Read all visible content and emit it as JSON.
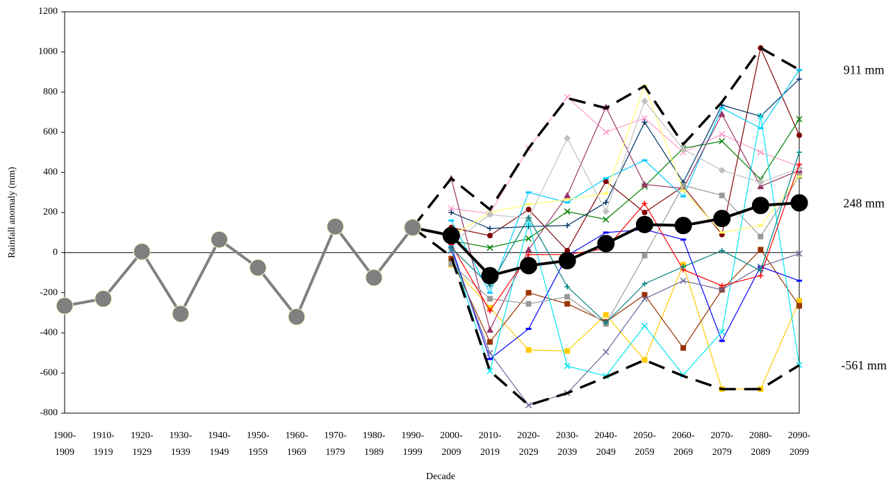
{
  "chart_data": {
    "type": "line",
    "x_label": "Decade",
    "y_label": "Rainfall anomaly (mm)",
    "categories": [
      "1900-\n1909",
      "1910-\n1919",
      "1920-\n1929",
      "1930-\n1939",
      "1940-\n1949",
      "1950-\n1959",
      "1960-\n1969",
      "1970-\n1979",
      "1980-\n1989",
      "1990-\n1999",
      "2000-\n2009",
      "2010-\n2019",
      "2020-\n2029",
      "2030-\n2039",
      "2040-\n2049",
      "2050-\n2059",
      "2060-\n2069",
      "2070-\n2079",
      "2080-\n2089",
      "2090-\n2099"
    ],
    "ylim": [
      -800,
      1200
    ],
    "yticks": [
      -800,
      -600,
      -400,
      -200,
      0,
      200,
      400,
      600,
      800,
      1000,
      1200
    ],
    "series": [
      {
        "color": "#ff99cc",
        "marker": "x",
        "values": [
          null,
          null,
          null,
          null,
          null,
          null,
          null,
          null,
          null,
          null,
          220,
          195,
          520,
          775,
          600,
          670,
          500,
          590,
          500,
          430
        ]
      },
      {
        "color": "#800000",
        "marker": "circle",
        "values": [
          null,
          null,
          null,
          null,
          null,
          null,
          null,
          null,
          null,
          null,
          125,
          85,
          215,
          10,
          355,
          200,
          330,
          90,
          1020,
          585
        ]
      },
      {
        "color": "#008000",
        "marker": "x",
        "values": [
          null,
          null,
          null,
          null,
          null,
          null,
          null,
          null,
          null,
          null,
          60,
          25,
          70,
          205,
          165,
          330,
          520,
          555,
          365,
          665
        ]
      },
      {
        "color": "#003366",
        "marker": "plus",
        "values": [
          null,
          null,
          null,
          null,
          null,
          null,
          null,
          null,
          null,
          null,
          200,
          120,
          130,
          135,
          250,
          650,
          350,
          735,
          680,
          865
        ]
      },
      {
        "color": "#00ccff",
        "marker": "bar",
        "values": [
          null,
          null,
          null,
          null,
          null,
          null,
          null,
          null,
          null,
          null,
          160,
          -200,
          300,
          250,
          370,
          460,
          280,
          720,
          620,
          910
        ]
      },
      {
        "color": "#ffcc00",
        "marker": "square",
        "values": [
          null,
          null,
          null,
          null,
          null,
          null,
          null,
          null,
          null,
          null,
          -60,
          -275,
          -485,
          -490,
          -310,
          -535,
          -60,
          -680,
          -680,
          -240
        ]
      },
      {
        "color": "#993300",
        "marker": "square",
        "values": [
          null,
          null,
          null,
          null,
          null,
          null,
          null,
          null,
          null,
          null,
          -30,
          -445,
          -200,
          -255,
          -345,
          -210,
          -475,
          -185,
          15,
          -265
        ]
      },
      {
        "color": "#993366",
        "marker": "triangle",
        "values": [
          null,
          null,
          null,
          null,
          null,
          null,
          null,
          null,
          null,
          null,
          370,
          -385,
          15,
          285,
          725,
          340,
          320,
          690,
          330,
          410
        ]
      },
      {
        "color": "#0000ff",
        "marker": "bar",
        "values": [
          null,
          null,
          null,
          null,
          null,
          null,
          null,
          null,
          null,
          null,
          30,
          -530,
          -380,
          -15,
          100,
          115,
          65,
          -440,
          -70,
          -140
        ]
      },
      {
        "color": "#999999",
        "marker": "square",
        "values": [
          null,
          null,
          null,
          null,
          null,
          null,
          null,
          null,
          null,
          null,
          -55,
          -230,
          -255,
          -220,
          -355,
          -15,
          335,
          285,
          80,
          380
        ]
      },
      {
        "color": "#00e5ee",
        "marker": "x",
        "values": [
          null,
          null,
          null,
          null,
          null,
          null,
          null,
          null,
          null,
          null,
          20,
          -590,
          150,
          -565,
          -615,
          -365,
          -610,
          -395,
          680,
          -560
        ]
      },
      {
        "color": "#ffff66",
        "marker": "bar",
        "values": [
          null,
          null,
          null,
          null,
          null,
          null,
          null,
          null,
          null,
          null,
          80,
          200,
          240,
          265,
          295,
          830,
          310,
          100,
          135,
          380
        ]
      },
      {
        "color": "#c0c0c0",
        "marker": "diamond",
        "values": [
          null,
          null,
          null,
          null,
          null,
          null,
          null,
          null,
          null,
          null,
          45,
          190,
          170,
          570,
          205,
          755,
          515,
          410,
          350,
          420
        ]
      },
      {
        "color": "#666699",
        "marker": "x",
        "values": [
          null,
          null,
          null,
          null,
          null,
          null,
          null,
          null,
          null,
          null,
          10,
          -500,
          -760,
          -700,
          -495,
          -230,
          -140,
          -185,
          -70,
          -5
        ]
      },
      {
        "color": "#ff0000",
        "marker": "plus",
        "values": [
          null,
          null,
          null,
          null,
          null,
          null,
          null,
          null,
          null,
          null,
          40,
          -290,
          -10,
          -10,
          20,
          245,
          -85,
          -165,
          -115,
          440
        ]
      },
      {
        "color": "#008080",
        "marker": "plus",
        "values": [
          null,
          null,
          null,
          null,
          null,
          null,
          null,
          null,
          null,
          null,
          25,
          -165,
          175,
          -170,
          -350,
          -155,
          -70,
          10,
          -90,
          500
        ]
      },
      {
        "color": "#000000",
        "style": "dashed",
        "values": [
          null,
          null,
          null,
          null,
          null,
          null,
          null,
          null,
          null,
          125,
          370,
          215,
          520,
          770,
          720,
          830,
          540,
          750,
          1020,
          911
        ]
      },
      {
        "color": "#000000",
        "style": "dashed",
        "values": [
          null,
          null,
          null,
          null,
          null,
          null,
          null,
          null,
          null,
          125,
          -20,
          -590,
          -760,
          -700,
          -620,
          -535,
          -615,
          -680,
          -680,
          -561
        ]
      },
      {
        "color": "#000000",
        "marker": "big",
        "values": [
          null,
          null,
          null,
          null,
          null,
          null,
          null,
          null,
          null,
          125,
          85,
          -115,
          -65,
          -40,
          45,
          140,
          135,
          170,
          235,
          248
        ]
      },
      {
        "color": "#808080",
        "marker": "big",
        "values": [
          -265,
          -230,
          5,
          -305,
          65,
          -75,
          -320,
          130,
          -125,
          125,
          null,
          null,
          null,
          null,
          null,
          null,
          null,
          null,
          null,
          null
        ]
      }
    ],
    "annotations": [
      {
        "text": "911 mm",
        "y": 911
      },
      {
        "text": "248 mm",
        "y": 248
      },
      {
        "text": "-561 mm",
        "y": -561
      }
    ]
  }
}
